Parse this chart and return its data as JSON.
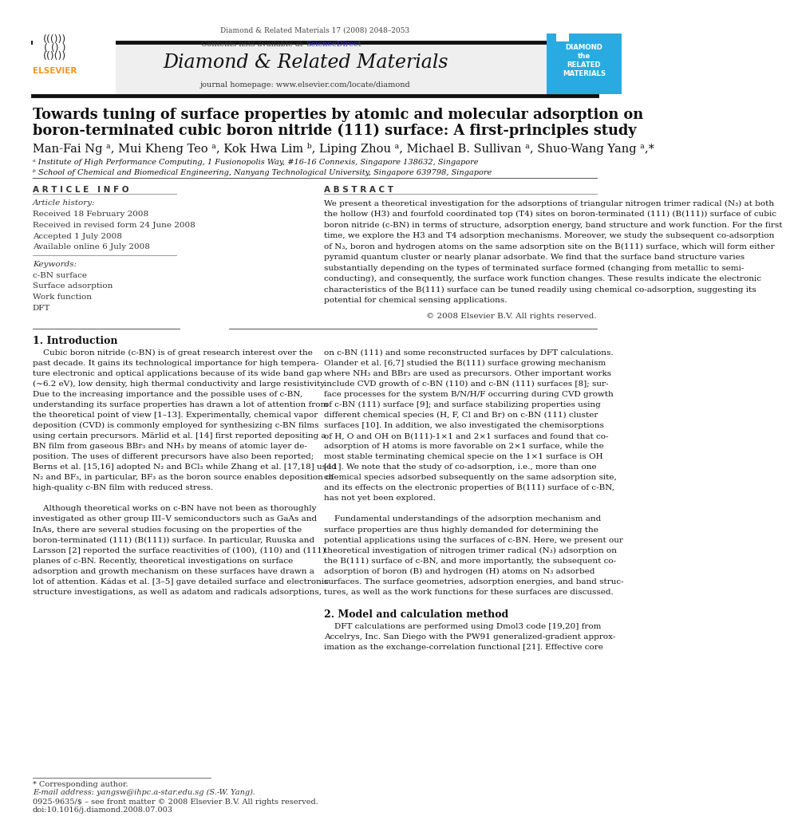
{
  "page_width": 9.92,
  "page_height": 13.23,
  "bg_color": "#ffffff",
  "journal_ref": "Diamond & Related Materials 17 (2008) 2048–2053",
  "journal_name": "Diamond & Related Materials",
  "journal_homepage": "journal homepage: www.elsevier.com/locate/diamond",
  "contents_pre": "Contents lists available at ",
  "contents_link": "ScienceDirect",
  "title_line1": "Towards tuning of surface properties by atomic and molecular adsorption on",
  "title_line2": "boron-terminated cubic boron nitride (111) surface: A first-principles study",
  "authors_line": "Man-Fai Ng ᵃ, Mui Kheng Teo ᵃ, Kok Hwa Lim ᵇ, Liping Zhou ᵃ, Michael B. Sullivan ᵃ, Shuo-Wang Yang ᵃ,*",
  "affil_a": "ᵃ Institute of High Performance Computing, 1 Fusionopolis Way, #16-16 Connexis, Singapore 138632, Singapore",
  "affil_b": "ᵇ School of Chemical and Biomedical Engineering, Nanyang Technological University, Singapore 639798, Singapore",
  "article_info_header": "A R T I C L E   I N F O",
  "abstract_header": "A B S T R A C T",
  "article_history_label": "Article history:",
  "received": "Received 18 February 2008",
  "received_revised": "Received in revised form 24 June 2008",
  "accepted": "Accepted 1 July 2008",
  "available_online": "Available online 6 July 2008",
  "keywords_label": "Keywords:",
  "keyword1": "c-BN surface",
  "keyword2": "Surface adsorption",
  "keyword3": "Work function",
  "keyword4": "DFT",
  "copyright": "© 2008 Elsevier B.V. All rights reserved.",
  "intro_header": "1. Introduction",
  "section2_header": "2. Model and calculation method",
  "footer_star": "* Corresponding author.",
  "footer_email": "E-mail address: yangsw@ihpc.a-star.edu.sg (S.-W. Yang).",
  "footer_issn": "0925-9635/$ – see front matter © 2008 Elsevier B.V. All rights reserved.",
  "footer_doi": "doi:10.1016/j.diamond.2008.07.003",
  "header_bg": "#efefef",
  "diamond_badge_bg": "#29abe2",
  "elsevier_orange": "#f7941d",
  "link_color": "#3333cc",
  "abstract_lines": [
    "We present a theoretical investigation for the adsorptions of triangular nitrogen trimer radical (N₃) at both",
    "the hollow (H3) and fourfold coordinated top (T4) sites on boron-terminated (111) (B(111)) surface of cubic",
    "boron nitride (c-BN) in terms of structure, adsorption energy, band structure and work function. For the first",
    "time, we explore the H3 and T4 adsorption mechanisms. Moreover, we study the subsequent co-adsorption",
    "of N₃, boron and hydrogen atoms on the same adsorption site on the B(111) surface, which will form either",
    "pyramid quantum cluster or nearly planar adsorbate. We find that the surface band structure varies",
    "substantially depending on the types of terminated surface formed (changing from metallic to semi-",
    "conducting), and consequently, the surface work function changes. These results indicate the electronic",
    "characteristics of the B(111) surface can be tuned readily using chemical co-adsorption, suggesting its",
    "potential for chemical sensing applications."
  ],
  "intro_col1_lines": [
    "    Cubic boron nitride (c-BN) is of great research interest over the",
    "past decade. It gains its technological importance for high tempera-",
    "ture electronic and optical applications because of its wide band gap",
    "(~6.2 eV), low density, high thermal conductivity and large resistivity.",
    "Due to the increasing importance and the possible uses of c-BN,",
    "understanding its surface properties has drawn a lot of attention from",
    "the theoretical point of view [1–13]. Experimentally, chemical vapor",
    "deposition (CVD) is commonly employed for synthesizing c-BN films",
    "using certain precursors. Märlid et al. [14] first reported depositing a",
    "BN film from gaseous BBr₃ and NH₃ by means of atomic layer de-",
    "position. The uses of different precursors have also been reported;",
    "Berns et al. [15,16] adopted N₂ and BCl₃ while Zhang et al. [17,18] used",
    "N₂ and BF₃, in particular, BF₃ as the boron source enables deposition of",
    "high-quality c-BN film with reduced stress.",
    "",
    "    Although theoretical works on c-BN have not been as thoroughly",
    "investigated as other group III–V semiconductors such as GaAs and",
    "InAs, there are several studies focusing on the properties of the",
    "boron-terminated (111) (B(111)) surface. In particular, Ruuska and",
    "Larsson [2] reported the surface reactivities of (100), (110) and (111)",
    "planes of c-BN. Recently, theoretical investigations on surface",
    "adsorption and growth mechanism on these surfaces have drawn a",
    "lot of attention. Kádas et al. [3–5] gave detailed surface and electronic",
    "structure investigations, as well as adatom and radicals adsorptions,"
  ],
  "intro_col2_lines": [
    "on c-BN (111) and some reconstructed surfaces by DFT calculations.",
    "Olander et al. [6,7] studied the B(111) surface growing mechanism",
    "where NH₃ and BBr₃ are used as precursors. Other important works",
    "include CVD growth of c-BN (110) and c-BN (111) surfaces [8]; sur-",
    "face processes for the system B/N/H/F occurring during CVD growth",
    "of c-BN (111) surface [9]; and surface stabilizing properties using",
    "different chemical species (H, F, Cl and Br) on c-BN (111) cluster",
    "surfaces [10]. In addition, we also investigated the chemisorptions",
    "of H, O and OH on B(111)-1×1 and 2×1 surfaces and found that co-",
    "adsorption of H atoms is more favorable on 2×1 surface, while the",
    "most stable terminating chemical specie on the 1×1 surface is OH",
    "[11]. We note that the study of co-adsorption, i.e., more than one",
    "chemical species adsorbed subsequently on the same adsorption site,",
    "and its effects on the electronic properties of B(111) surface of c-BN,",
    "has not yet been explored.",
    "",
    "    Fundamental understandings of the adsorption mechanism and",
    "surface properties are thus highly demanded for determining the",
    "potential applications using the surfaces of c-BN. Here, we present our",
    "theoretical investigation of nitrogen trimer radical (N₃) adsorption on",
    "the B(111) surface of c-BN, and more importantly, the subsequent co-",
    "adsorption of boron (B) and hydrogen (H) atoms on N₃ adsorbed",
    "surfaces. The surface geometries, adsorption energies, and band struc-",
    "tures, as well as the work functions for these surfaces are discussed."
  ],
  "sec2_lines": [
    "    DFT calculations are performed using Dmol3 code [19,20] from",
    "Accelrys, Inc. San Diego with the PW91 generalized-gradient approx-",
    "imation as the exchange-correlation functional [21]. Effective core"
  ]
}
